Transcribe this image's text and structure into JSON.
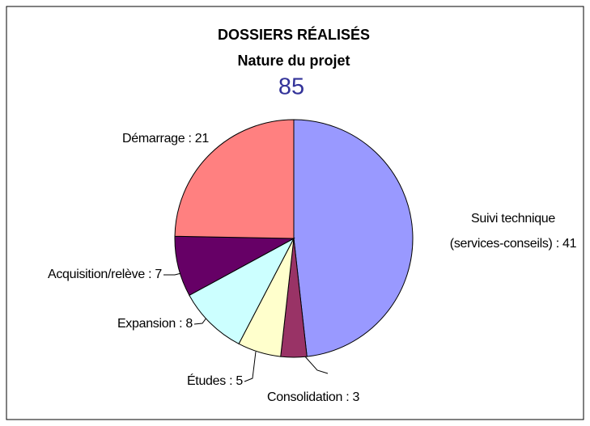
{
  "chart_data": {
    "type": "pie",
    "title": "DOSSIERS RÉALISÉS",
    "subtitle": "Nature du projet",
    "total": 85,
    "values": [
      41,
      3,
      5,
      8,
      7,
      21
    ],
    "value_labels": [
      "Suivi technique (services-conseils) : 41",
      "Consolidation : 3",
      "Études : 5",
      "Expansion : 8",
      "Acquisition/relève : 7",
      "Démarrage : 21"
    ],
    "colors": [
      "#9999ff",
      "#993366",
      "#ffffcc",
      "#ccffff",
      "#660066",
      "#ff8080"
    ]
  }
}
